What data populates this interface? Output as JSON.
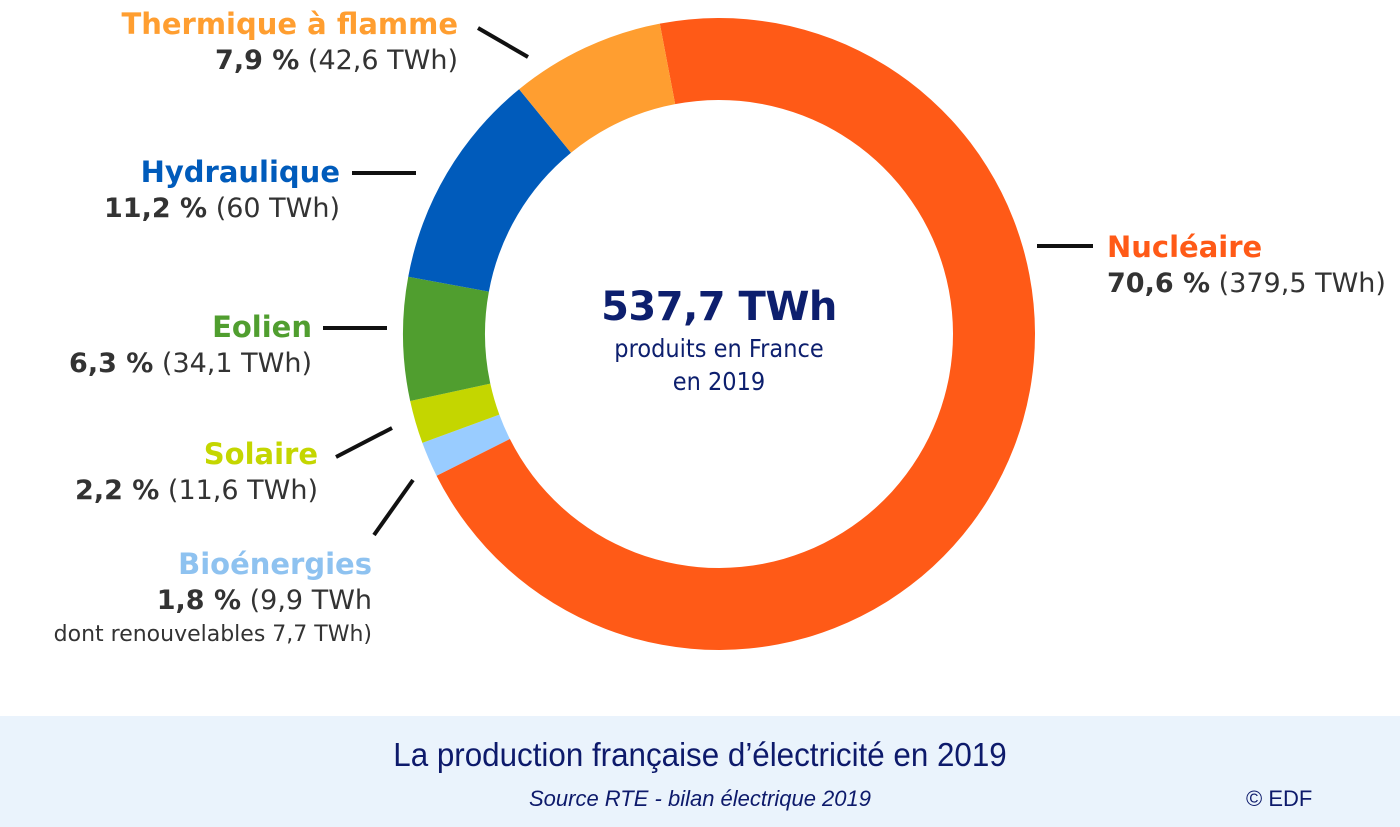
{
  "chart_data": {
    "type": "pie",
    "variant": "donut",
    "title": "La production française d’électricité en 2019",
    "subtitle": "Source RTE - bilan électrique 2019",
    "center_label": {
      "value": "537,7 TWh",
      "line1": "produits en France",
      "line2": "en 2019"
    },
    "total_twh": 537.7,
    "unit": "TWh",
    "start_angle_deg": -10.8,
    "direction": "clockwise",
    "series": [
      {
        "name": "Nucléaire",
        "percent": 70.6,
        "twh": 379.5,
        "pct_label": "70,6 %",
        "twh_label": "(379,5 TWh)",
        "color": "#ff5a17"
      },
      {
        "name": "Bioénergies",
        "percent": 1.8,
        "twh": 9.9,
        "pct_label": "1,8 %",
        "twh_label": "(9,9 TWh",
        "extra": "dont renouvelables 7,7 TWh)",
        "renewable_twh": 7.7,
        "color": "#99ccff"
      },
      {
        "name": "Solaire",
        "percent": 2.2,
        "twh": 11.6,
        "pct_label": "2,2 %",
        "twh_label": "(11,6 TWh)",
        "color": "#c4d600"
      },
      {
        "name": "Eolien",
        "percent": 6.3,
        "twh": 34.1,
        "pct_label": "6,3 %",
        "twh_label": "(34,1 TWh)",
        "color": "#509e2f"
      },
      {
        "name": "Hydraulique",
        "percent": 11.2,
        "twh": 60,
        "pct_label": "11,2 %",
        "twh_label": "(60 TWh)",
        "color": "#005bbb"
      },
      {
        "name": "Thermique à flamme",
        "percent": 7.9,
        "twh": 42.6,
        "pct_label": "7,9 %",
        "twh_label": "(42,6 TWh)",
        "color": "#ff9e30"
      }
    ],
    "legend": "labels-around-donut"
  },
  "footer": {
    "title": "La production française d’électricité en 2019",
    "source": "Source RTE - bilan électrique 2019",
    "copyright": "© EDF",
    "background": "#eaf3fc",
    "text_color": "#0d1a6b"
  }
}
